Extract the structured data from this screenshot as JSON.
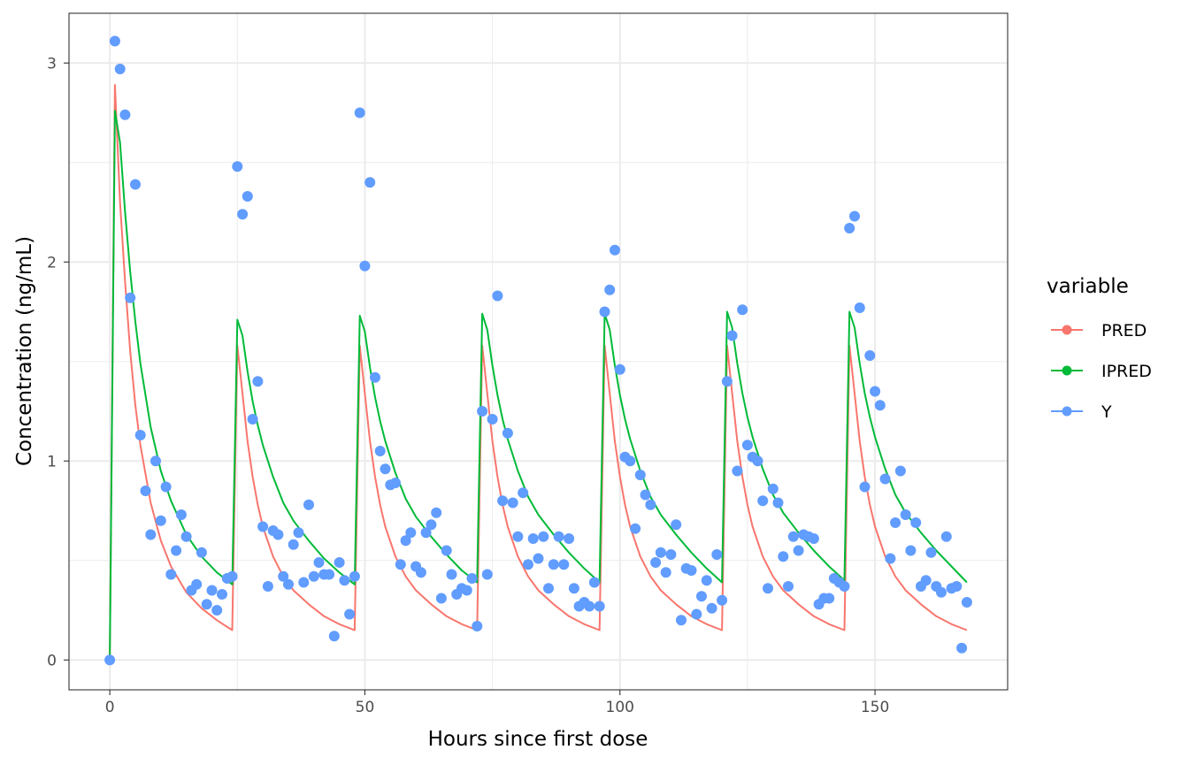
{
  "chart_data": {
    "type": "line",
    "title": "",
    "xlabel": "Hours since first dose",
    "ylabel": "Concentration (ng/mL)",
    "xlim": [
      -8,
      176
    ],
    "ylim": [
      -0.15,
      3.25
    ],
    "x_ticks": [
      0,
      50,
      100,
      150
    ],
    "x_tick_labels": [
      "0",
      "50",
      "100",
      "150"
    ],
    "y_ticks": [
      0,
      1,
      2,
      3
    ],
    "y_tick_labels": [
      "0",
      "1",
      "2",
      "3"
    ],
    "grid": true,
    "legend": {
      "title": "variable",
      "position": "right",
      "items": [
        "PRED",
        "IPRED",
        "Y"
      ]
    },
    "dose_times": [
      0,
      24,
      48,
      72,
      96,
      120,
      144
    ],
    "series": [
      {
        "name": "PRED",
        "type": "line",
        "color": "#F8766D",
        "x": [
          0,
          1,
          2,
          3,
          4,
          5,
          6,
          8,
          10,
          12,
          15,
          18,
          21,
          24,
          25,
          26,
          27,
          28,
          29,
          30,
          32,
          34,
          36,
          39,
          42,
          45,
          48,
          49,
          50,
          51,
          52,
          53,
          54,
          56,
          58,
          60,
          63,
          66,
          69,
          72,
          73,
          74,
          75,
          76,
          77,
          78,
          80,
          82,
          84,
          87,
          90,
          93,
          96,
          97,
          98,
          99,
          100,
          101,
          102,
          104,
          106,
          108,
          111,
          114,
          117,
          120,
          121,
          122,
          123,
          124,
          125,
          126,
          128,
          130,
          132,
          135,
          138,
          141,
          144,
          145,
          146,
          147,
          148,
          149,
          150,
          152,
          154,
          156,
          159,
          162,
          165,
          168
        ],
        "y": [
          0,
          2.89,
          2.3,
          1.9,
          1.55,
          1.28,
          1.08,
          0.79,
          0.6,
          0.47,
          0.34,
          0.26,
          0.2,
          0.15,
          1.58,
          1.34,
          1.1,
          0.92,
          0.78,
          0.67,
          0.52,
          0.42,
          0.35,
          0.28,
          0.22,
          0.18,
          0.15,
          1.58,
          1.34,
          1.1,
          0.92,
          0.78,
          0.67,
          0.52,
          0.42,
          0.35,
          0.28,
          0.22,
          0.18,
          0.15,
          1.58,
          1.34,
          1.1,
          0.92,
          0.78,
          0.67,
          0.52,
          0.42,
          0.35,
          0.28,
          0.22,
          0.18,
          0.15,
          1.58,
          1.34,
          1.1,
          0.92,
          0.78,
          0.67,
          0.52,
          0.42,
          0.35,
          0.28,
          0.22,
          0.18,
          0.15,
          1.58,
          1.34,
          1.1,
          0.92,
          0.78,
          0.67,
          0.52,
          0.42,
          0.35,
          0.28,
          0.22,
          0.18,
          0.15,
          1.58,
          1.34,
          1.1,
          0.92,
          0.78,
          0.67,
          0.52,
          0.42,
          0.35,
          0.28,
          0.22,
          0.18,
          0.15
        ]
      },
      {
        "name": "IPRED",
        "type": "line",
        "color": "#00BA38",
        "x": [
          0,
          1,
          2,
          3,
          4,
          5,
          6,
          8,
          10,
          12,
          15,
          18,
          21,
          24,
          25,
          26,
          27,
          28,
          29,
          30,
          32,
          34,
          36,
          39,
          42,
          45,
          48,
          49,
          50,
          51,
          52,
          53,
          54,
          56,
          58,
          60,
          63,
          66,
          69,
          72,
          73,
          74,
          75,
          76,
          77,
          78,
          80,
          82,
          84,
          87,
          90,
          93,
          96,
          97,
          98,
          99,
          100,
          101,
          102,
          104,
          106,
          108,
          111,
          114,
          117,
          120,
          121,
          122,
          123,
          124,
          125,
          126,
          128,
          130,
          132,
          135,
          138,
          141,
          144,
          145,
          146,
          147,
          148,
          149,
          150,
          152,
          154,
          156,
          159,
          162,
          165,
          168
        ],
        "y": [
          0,
          2.76,
          2.6,
          2.25,
          1.95,
          1.7,
          1.49,
          1.17,
          0.95,
          0.8,
          0.63,
          0.52,
          0.44,
          0.38,
          1.71,
          1.63,
          1.45,
          1.3,
          1.18,
          1.08,
          0.92,
          0.79,
          0.7,
          0.6,
          0.51,
          0.44,
          0.38,
          1.73,
          1.65,
          1.47,
          1.32,
          1.2,
          1.1,
          0.94,
          0.81,
          0.72,
          0.62,
          0.53,
          0.45,
          0.39,
          1.74,
          1.66,
          1.48,
          1.33,
          1.21,
          1.11,
          0.95,
          0.82,
          0.73,
          0.63,
          0.54,
          0.46,
          0.39,
          1.74,
          1.66,
          1.48,
          1.33,
          1.21,
          1.11,
          0.95,
          0.82,
          0.73,
          0.63,
          0.54,
          0.46,
          0.39,
          1.75,
          1.67,
          1.49,
          1.34,
          1.22,
          1.12,
          0.96,
          0.83,
          0.74,
          0.64,
          0.55,
          0.47,
          0.4,
          1.75,
          1.67,
          1.49,
          1.34,
          1.22,
          1.12,
          0.96,
          0.83,
          0.74,
          0.64,
          0.55,
          0.47,
          0.39
        ]
      },
      {
        "name": "Y",
        "type": "scatter",
        "color": "#619CFF",
        "x": [
          0,
          1,
          2,
          3,
          4,
          5,
          6,
          7,
          8,
          9,
          10,
          11,
          12,
          13,
          14,
          15,
          16,
          17,
          18,
          19,
          20,
          21,
          22,
          23,
          24,
          25,
          26,
          27,
          28,
          29,
          30,
          31,
          32,
          33,
          34,
          35,
          36,
          37,
          38,
          39,
          40,
          41,
          42,
          43,
          44,
          45,
          46,
          47,
          48,
          49,
          50,
          51,
          52,
          53,
          54,
          55,
          56,
          57,
          58,
          59,
          60,
          61,
          62,
          63,
          64,
          65,
          66,
          67,
          68,
          69,
          70,
          71,
          72,
          73,
          74,
          75,
          76,
          77,
          78,
          79,
          80,
          81,
          82,
          83,
          84,
          85,
          86,
          87,
          88,
          89,
          90,
          91,
          92,
          93,
          94,
          95,
          96,
          97,
          98,
          99,
          100,
          101,
          102,
          103,
          104,
          105,
          106,
          107,
          108,
          109,
          110,
          111,
          112,
          113,
          114,
          115,
          116,
          117,
          118,
          119,
          120,
          121,
          122,
          123,
          124,
          125,
          126,
          127,
          128,
          129,
          130,
          131,
          132,
          133,
          134,
          135,
          136,
          137,
          138,
          139,
          140,
          141,
          142,
          143,
          144,
          145,
          146,
          147,
          148,
          149,
          150,
          151,
          152,
          153,
          154,
          155,
          156,
          157,
          158,
          159,
          160,
          161,
          162,
          163,
          164,
          165,
          166,
          167,
          168
        ],
        "y": [
          0.0,
          3.11,
          2.97,
          2.74,
          1.82,
          2.39,
          1.13,
          0.85,
          0.63,
          1.0,
          0.7,
          0.87,
          0.43,
          0.55,
          0.73,
          0.62,
          0.35,
          0.38,
          0.54,
          0.28,
          0.35,
          0.25,
          0.33,
          0.41,
          0.42,
          2.48,
          2.24,
          2.33,
          1.21,
          1.4,
          0.67,
          0.37,
          0.65,
          0.63,
          0.42,
          0.38,
          0.58,
          0.64,
          0.39,
          0.78,
          0.42,
          0.49,
          0.43,
          0.43,
          0.12,
          0.49,
          0.4,
          0.23,
          0.42,
          2.75,
          1.98,
          2.4,
          1.42,
          1.05,
          0.96,
          0.88,
          0.89,
          0.48,
          0.6,
          0.64,
          0.47,
          0.44,
          0.64,
          0.68,
          0.74,
          0.31,
          0.55,
          0.43,
          0.33,
          0.36,
          0.35,
          0.41,
          0.17,
          1.25,
          0.43,
          1.21,
          1.83,
          0.8,
          1.14,
          0.79,
          0.62,
          0.84,
          0.48,
          0.61,
          0.51,
          0.62,
          0.36,
          0.48,
          0.62,
          0.48,
          0.61,
          0.36,
          0.27,
          0.29,
          0.27,
          0.39,
          0.27,
          1.75,
          1.86,
          2.06,
          1.46,
          1.02,
          1.0,
          0.66,
          0.93,
          0.83,
          0.78,
          0.49,
          0.54,
          0.44,
          0.53,
          0.68,
          0.2,
          0.46,
          0.45,
          0.23,
          0.32,
          0.4,
          0.26,
          0.53,
          0.3,
          1.4,
          1.63,
          0.95,
          1.76,
          1.08,
          1.02,
          1.0,
          0.8,
          0.36,
          0.86,
          0.79,
          0.52,
          0.37,
          0.62,
          0.55,
          0.63,
          0.62,
          0.61,
          0.28,
          0.31,
          0.31,
          0.41,
          0.39,
          0.37,
          2.17,
          2.23,
          1.77,
          0.87,
          1.53,
          1.35,
          1.28,
          0.91,
          0.51,
          0.69,
          0.95,
          0.73,
          0.55,
          0.69,
          0.37,
          0.4,
          0.54,
          0.37,
          0.34,
          0.62,
          0.36,
          0.37,
          0.06,
          0.29
        ]
      }
    ]
  }
}
